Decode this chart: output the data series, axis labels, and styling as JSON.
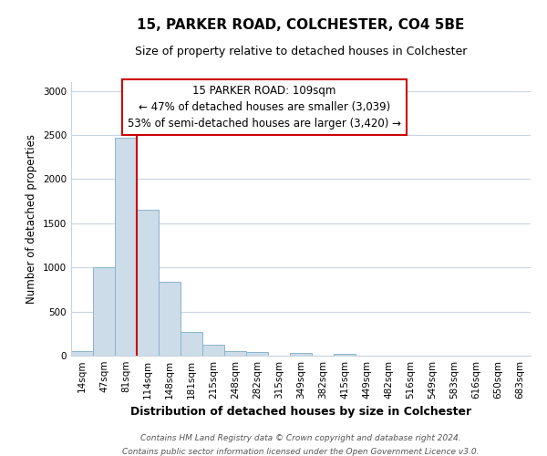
{
  "title": "15, PARKER ROAD, COLCHESTER, CO4 5BE",
  "subtitle": "Size of property relative to detached houses in Colchester",
  "xlabel": "Distribution of detached houses by size in Colchester",
  "ylabel": "Number of detached properties",
  "bar_labels": [
    "14sqm",
    "47sqm",
    "81sqm",
    "114sqm",
    "148sqm",
    "181sqm",
    "215sqm",
    "248sqm",
    "282sqm",
    "315sqm",
    "349sqm",
    "382sqm",
    "415sqm",
    "449sqm",
    "482sqm",
    "516sqm",
    "549sqm",
    "583sqm",
    "616sqm",
    "650sqm",
    "683sqm"
  ],
  "bar_values": [
    55,
    1000,
    2470,
    1650,
    835,
    270,
    125,
    50,
    40,
    0,
    30,
    0,
    20,
    0,
    0,
    0,
    0,
    0,
    0,
    0,
    0
  ],
  "bar_color": "#ccdce8",
  "bar_edge_color": "#8ab4cc",
  "vline_color": "#cc0000",
  "annotation_line1": "15 PARKER ROAD: 109sqm",
  "annotation_line2": "← 47% of detached houses are smaller (3,039)",
  "annotation_line3": "53% of semi-detached houses are larger (3,420) →",
  "annotation_box_color": "#ffffff",
  "annotation_box_edge_color": "#cc0000",
  "ylim": [
    0,
    3100
  ],
  "yticks": [
    0,
    500,
    1000,
    1500,
    2000,
    2500,
    3000
  ],
  "footer_line1": "Contains HM Land Registry data © Crown copyright and database right 2024.",
  "footer_line2": "Contains public sector information licensed under the Open Government Licence v3.0.",
  "background_color": "#ffffff",
  "grid_color": "#c8d4e0"
}
